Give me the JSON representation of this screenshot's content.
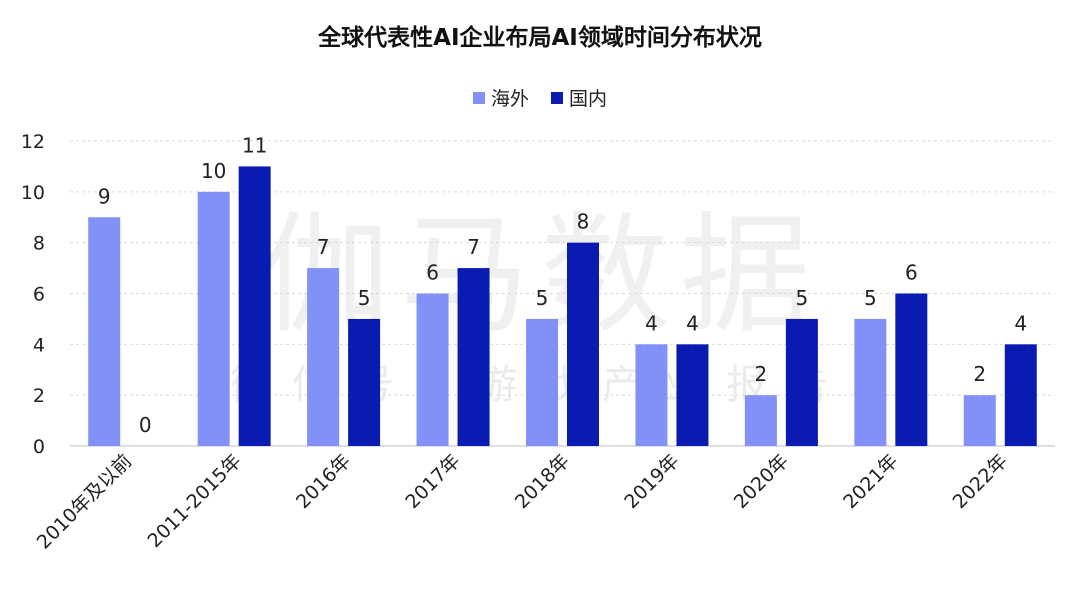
{
  "chart_data": {
    "type": "bar",
    "title": "全球代表性AI企业布局AI领域时间分布状况",
    "categories": [
      "2010年及以前",
      "2011-2015年",
      "2016年",
      "2017年",
      "2018年",
      "2019年",
      "2020年",
      "2021年",
      "2022年"
    ],
    "series": [
      {
        "name": "海外",
        "color": "#8191F8",
        "values": [
          9,
          10,
          7,
          6,
          5,
          4,
          2,
          5,
          2
        ]
      },
      {
        "name": "国内",
        "color": "#0A1BB2",
        "values": [
          0,
          11,
          5,
          7,
          8,
          4,
          5,
          6,
          4
        ]
      }
    ],
    "ylim": [
      0,
      12
    ],
    "yticks": [
      0,
      2,
      4,
      6,
      8,
      10,
      12
    ],
    "grid": true,
    "legend_position": "top-center",
    "xlabel": "",
    "ylabel": ""
  },
  "watermark": {
    "main": "伽马数据",
    "sub": "微信号：游戏产业报告"
  }
}
